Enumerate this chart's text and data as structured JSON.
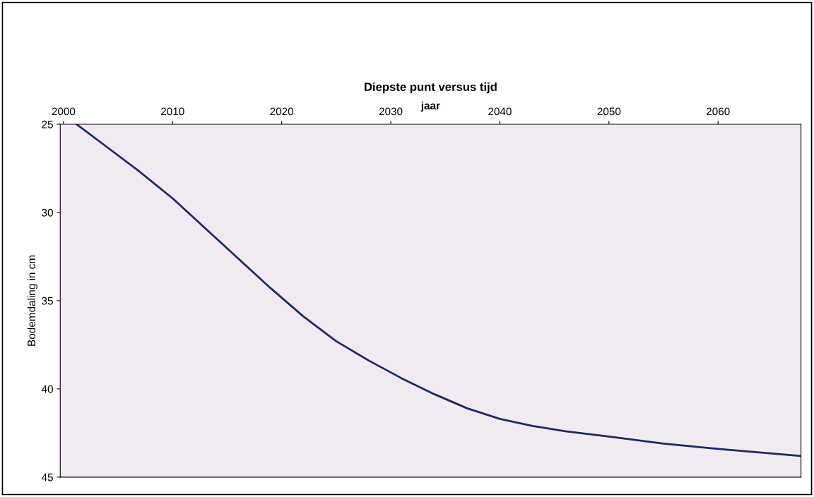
{
  "chart_data": {
    "type": "line",
    "title": "Diepste punt versus tijd",
    "xlabel": "jaar",
    "ylabel": "Bodemdaling in cm",
    "x": [
      2001.2,
      2004,
      2007,
      2010,
      2013,
      2016,
      2019,
      2022,
      2025,
      2028,
      2031,
      2034,
      2037,
      2040,
      2043,
      2046,
      2050,
      2055,
      2060,
      2067.5
    ],
    "series": [
      {
        "color": "#1f2a5a",
        "values": [
          25.0,
          26.3,
          27.7,
          29.2,
          30.9,
          32.6,
          34.3,
          35.9,
          37.3,
          38.4,
          39.4,
          40.3,
          41.1,
          41.7,
          42.1,
          42.4,
          42.7,
          43.1,
          43.4,
          43.8
        ]
      }
    ],
    "xlim": [
      1999.7,
      2067.6
    ],
    "xticks": [
      2000,
      2010,
      2020,
      2030,
      2040,
      2050,
      2060
    ],
    "ylim": [
      45,
      25
    ],
    "yticks": [
      25,
      30,
      35,
      40,
      45
    ],
    "grid": false,
    "legend": false,
    "marker": "none",
    "line_style": "solid"
  }
}
